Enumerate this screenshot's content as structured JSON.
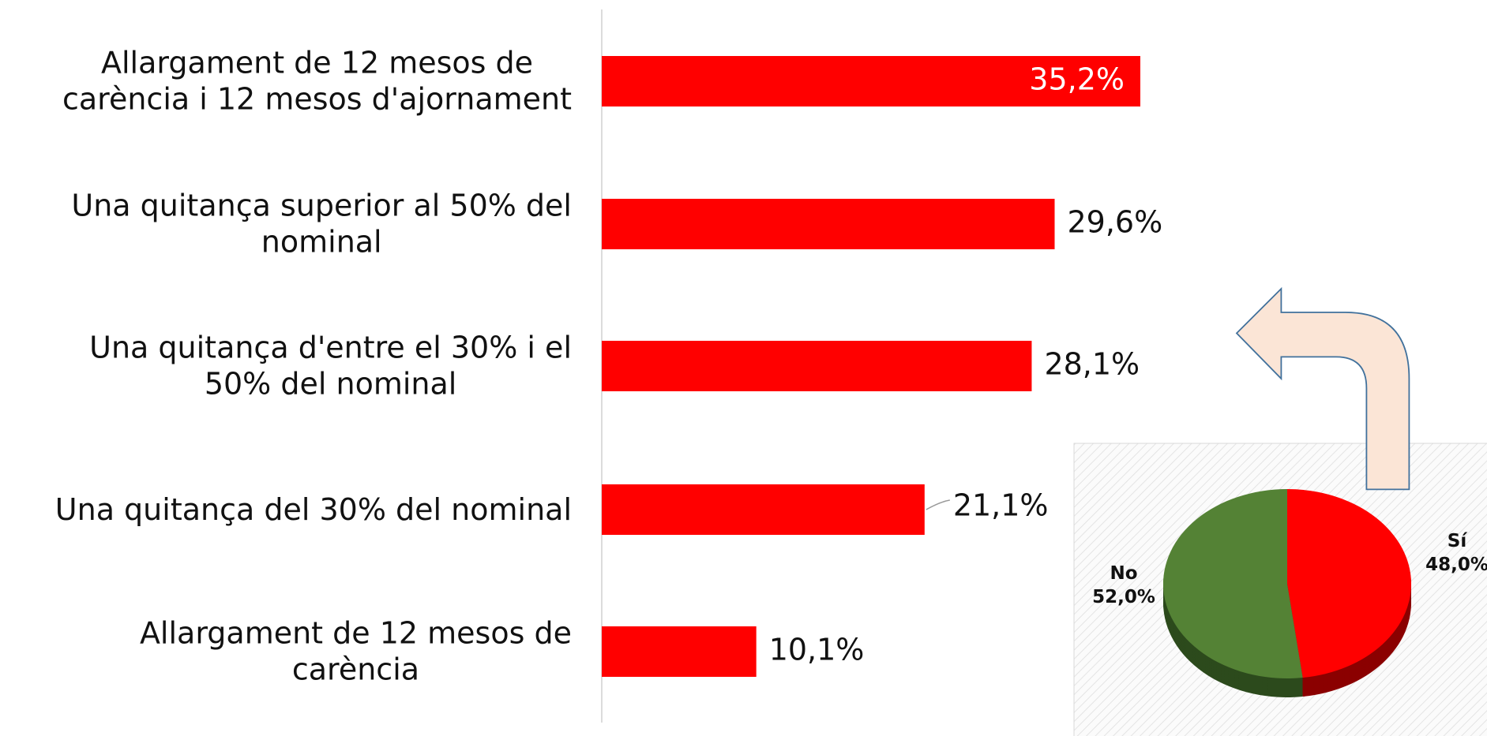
{
  "chart_data": [
    {
      "type": "hbar",
      "categories": [
        "Allargament de 12 mesos de\ncarència i 12 mesos d'ajornament",
        "Una quitança superior al 50% del\nnominal",
        "Una quitança d'entre el 30% i el\n50% del nominal",
        "Una quitança del 30% del nominal",
        "Allargament de 12 mesos de\ncarència"
      ],
      "values": [
        35.2,
        29.6,
        28.1,
        21.1,
        10.1
      ],
      "value_labels": [
        "35,2%",
        "29,6%",
        "28,1%",
        "21,1%",
        "10,1%"
      ],
      "color": "#ff0000",
      "xlim": [
        0,
        40
      ]
    },
    {
      "type": "pie",
      "categories": [
        "Sí",
        "No"
      ],
      "values": [
        48.0,
        52.0
      ],
      "value_labels": [
        "48,0%",
        "52,0%"
      ],
      "colors": [
        "#ff0000",
        "#548235"
      ]
    }
  ]
}
